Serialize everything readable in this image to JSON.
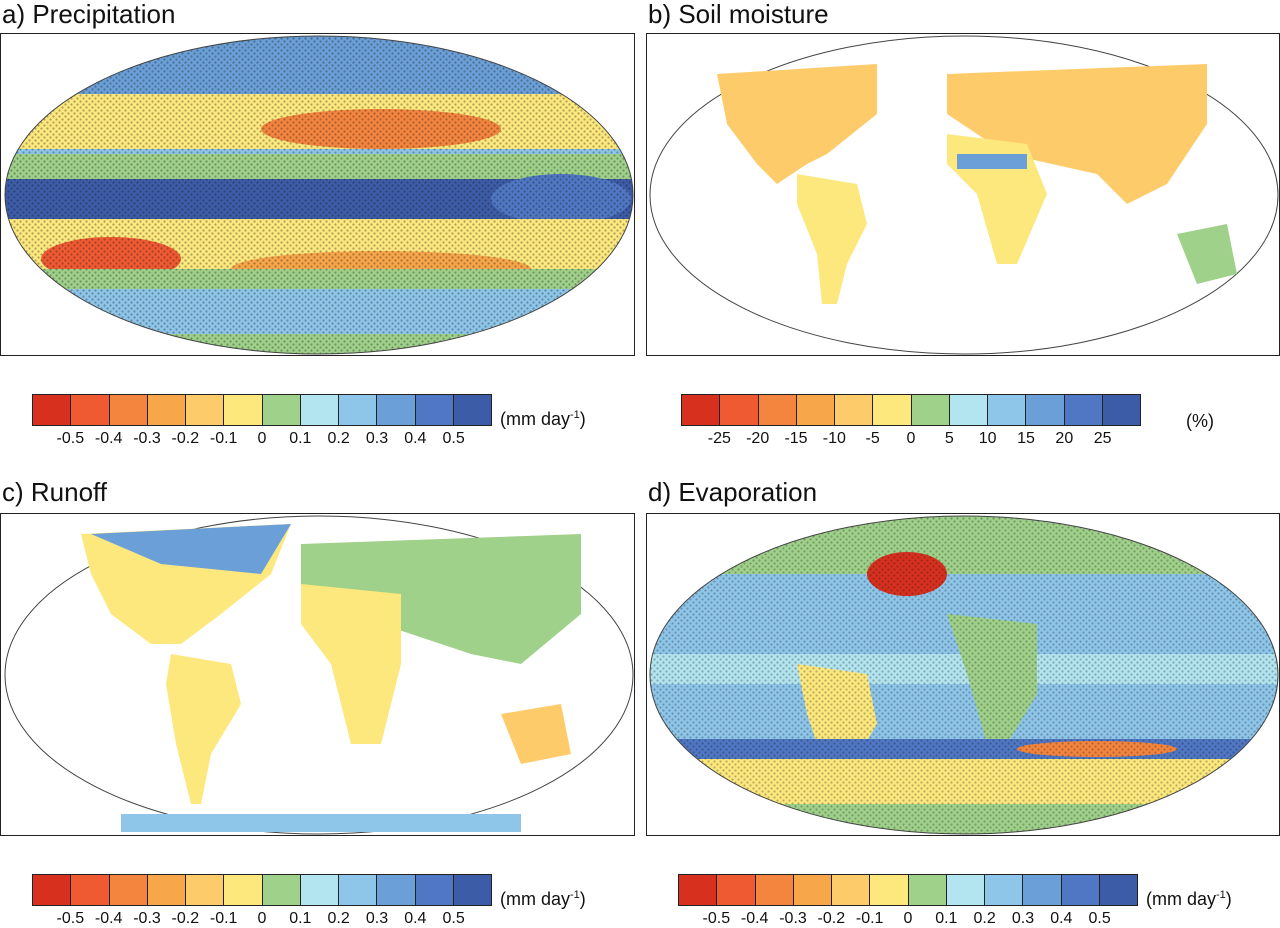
{
  "panels": [
    {
      "title": "a) Precipitation"
    },
    {
      "title": "b) Soil moisture"
    },
    {
      "title": "c) Runoff"
    },
    {
      "title": "d) Evaporation"
    }
  ],
  "palette": [
    "#d7301f",
    "#ef5a32",
    "#f4853e",
    "#f8a64a",
    "#fdcb6a",
    "#fde87e",
    "#9fd18a",
    "#b2e5ef",
    "#8ec6ea",
    "#6a9fd7",
    "#4f77c4",
    "#3d5ca8"
  ],
  "colorbars": [
    {
      "ticks": [
        "-0.5",
        "-0.4",
        "-0.3",
        "-0.2",
        "-0.1",
        "0",
        "0.1",
        "0.2",
        "0.3",
        "0.4",
        "0.5"
      ],
      "unit": "(mm day",
      "unit_sup": "-1",
      "unit_end": ")"
    },
    {
      "ticks": [
        "-25",
        "-20",
        "-15",
        "-10",
        "-5",
        "0",
        "5",
        "10",
        "15",
        "20",
        "25"
      ],
      "unit": "(%)",
      "unit_sup": "",
      "unit_end": ""
    },
    {
      "ticks": [
        "-0.5",
        "-0.4",
        "-0.3",
        "-0.2",
        "-0.1",
        "0",
        "0.1",
        "0.2",
        "0.3",
        "0.4",
        "0.5"
      ],
      "unit": "(mm day",
      "unit_sup": "-1",
      "unit_end": ")"
    },
    {
      "ticks": [
        "-0.5",
        "-0.4",
        "-0.3",
        "-0.2",
        "-0.1",
        "0",
        "0.1",
        "0.2",
        "0.3",
        "0.4",
        "0.5"
      ],
      "unit": "(mm day",
      "unit_sup": "-1",
      "unit_end": ")"
    }
  ]
}
